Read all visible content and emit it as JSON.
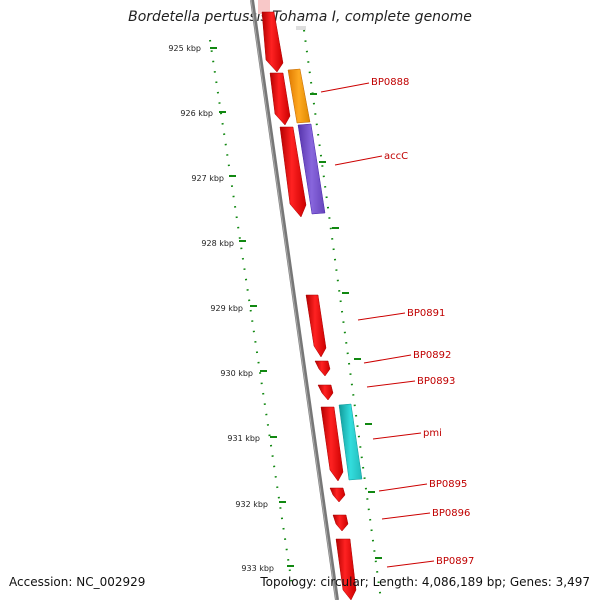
{
  "title": "Bordetella pertussis Tohama I, complete genome",
  "footer": {
    "accession": "Accession: NC_002929",
    "topology": "Topology: circular; Length: 4,086,189 bp; Genes: 3,497"
  },
  "colors": {
    "backbone": "#7a7a7a",
    "gene_red": "#ee1111",
    "gene_orange": "#ff9900",
    "gene_purple": "#7755cc",
    "gene_cyan": "#22cccc",
    "tick_green": "#118811",
    "label_red": "#cc0000"
  },
  "kbp_labels": [
    "925 kbp",
    "926 kbp",
    "927 kbp",
    "928 kbp",
    "929 kbp",
    "930 kbp",
    "931 kbp",
    "932 kbp",
    "933 kbp"
  ],
  "genes": [
    {
      "label": "BP0888"
    },
    {
      "label": "accC"
    },
    {
      "label": "BP0891"
    },
    {
      "label": "BP0892"
    },
    {
      "label": "BP0893"
    },
    {
      "label": "pmi"
    },
    {
      "label": "BP0895"
    },
    {
      "label": "BP0896"
    },
    {
      "label": "BP0897"
    }
  ]
}
